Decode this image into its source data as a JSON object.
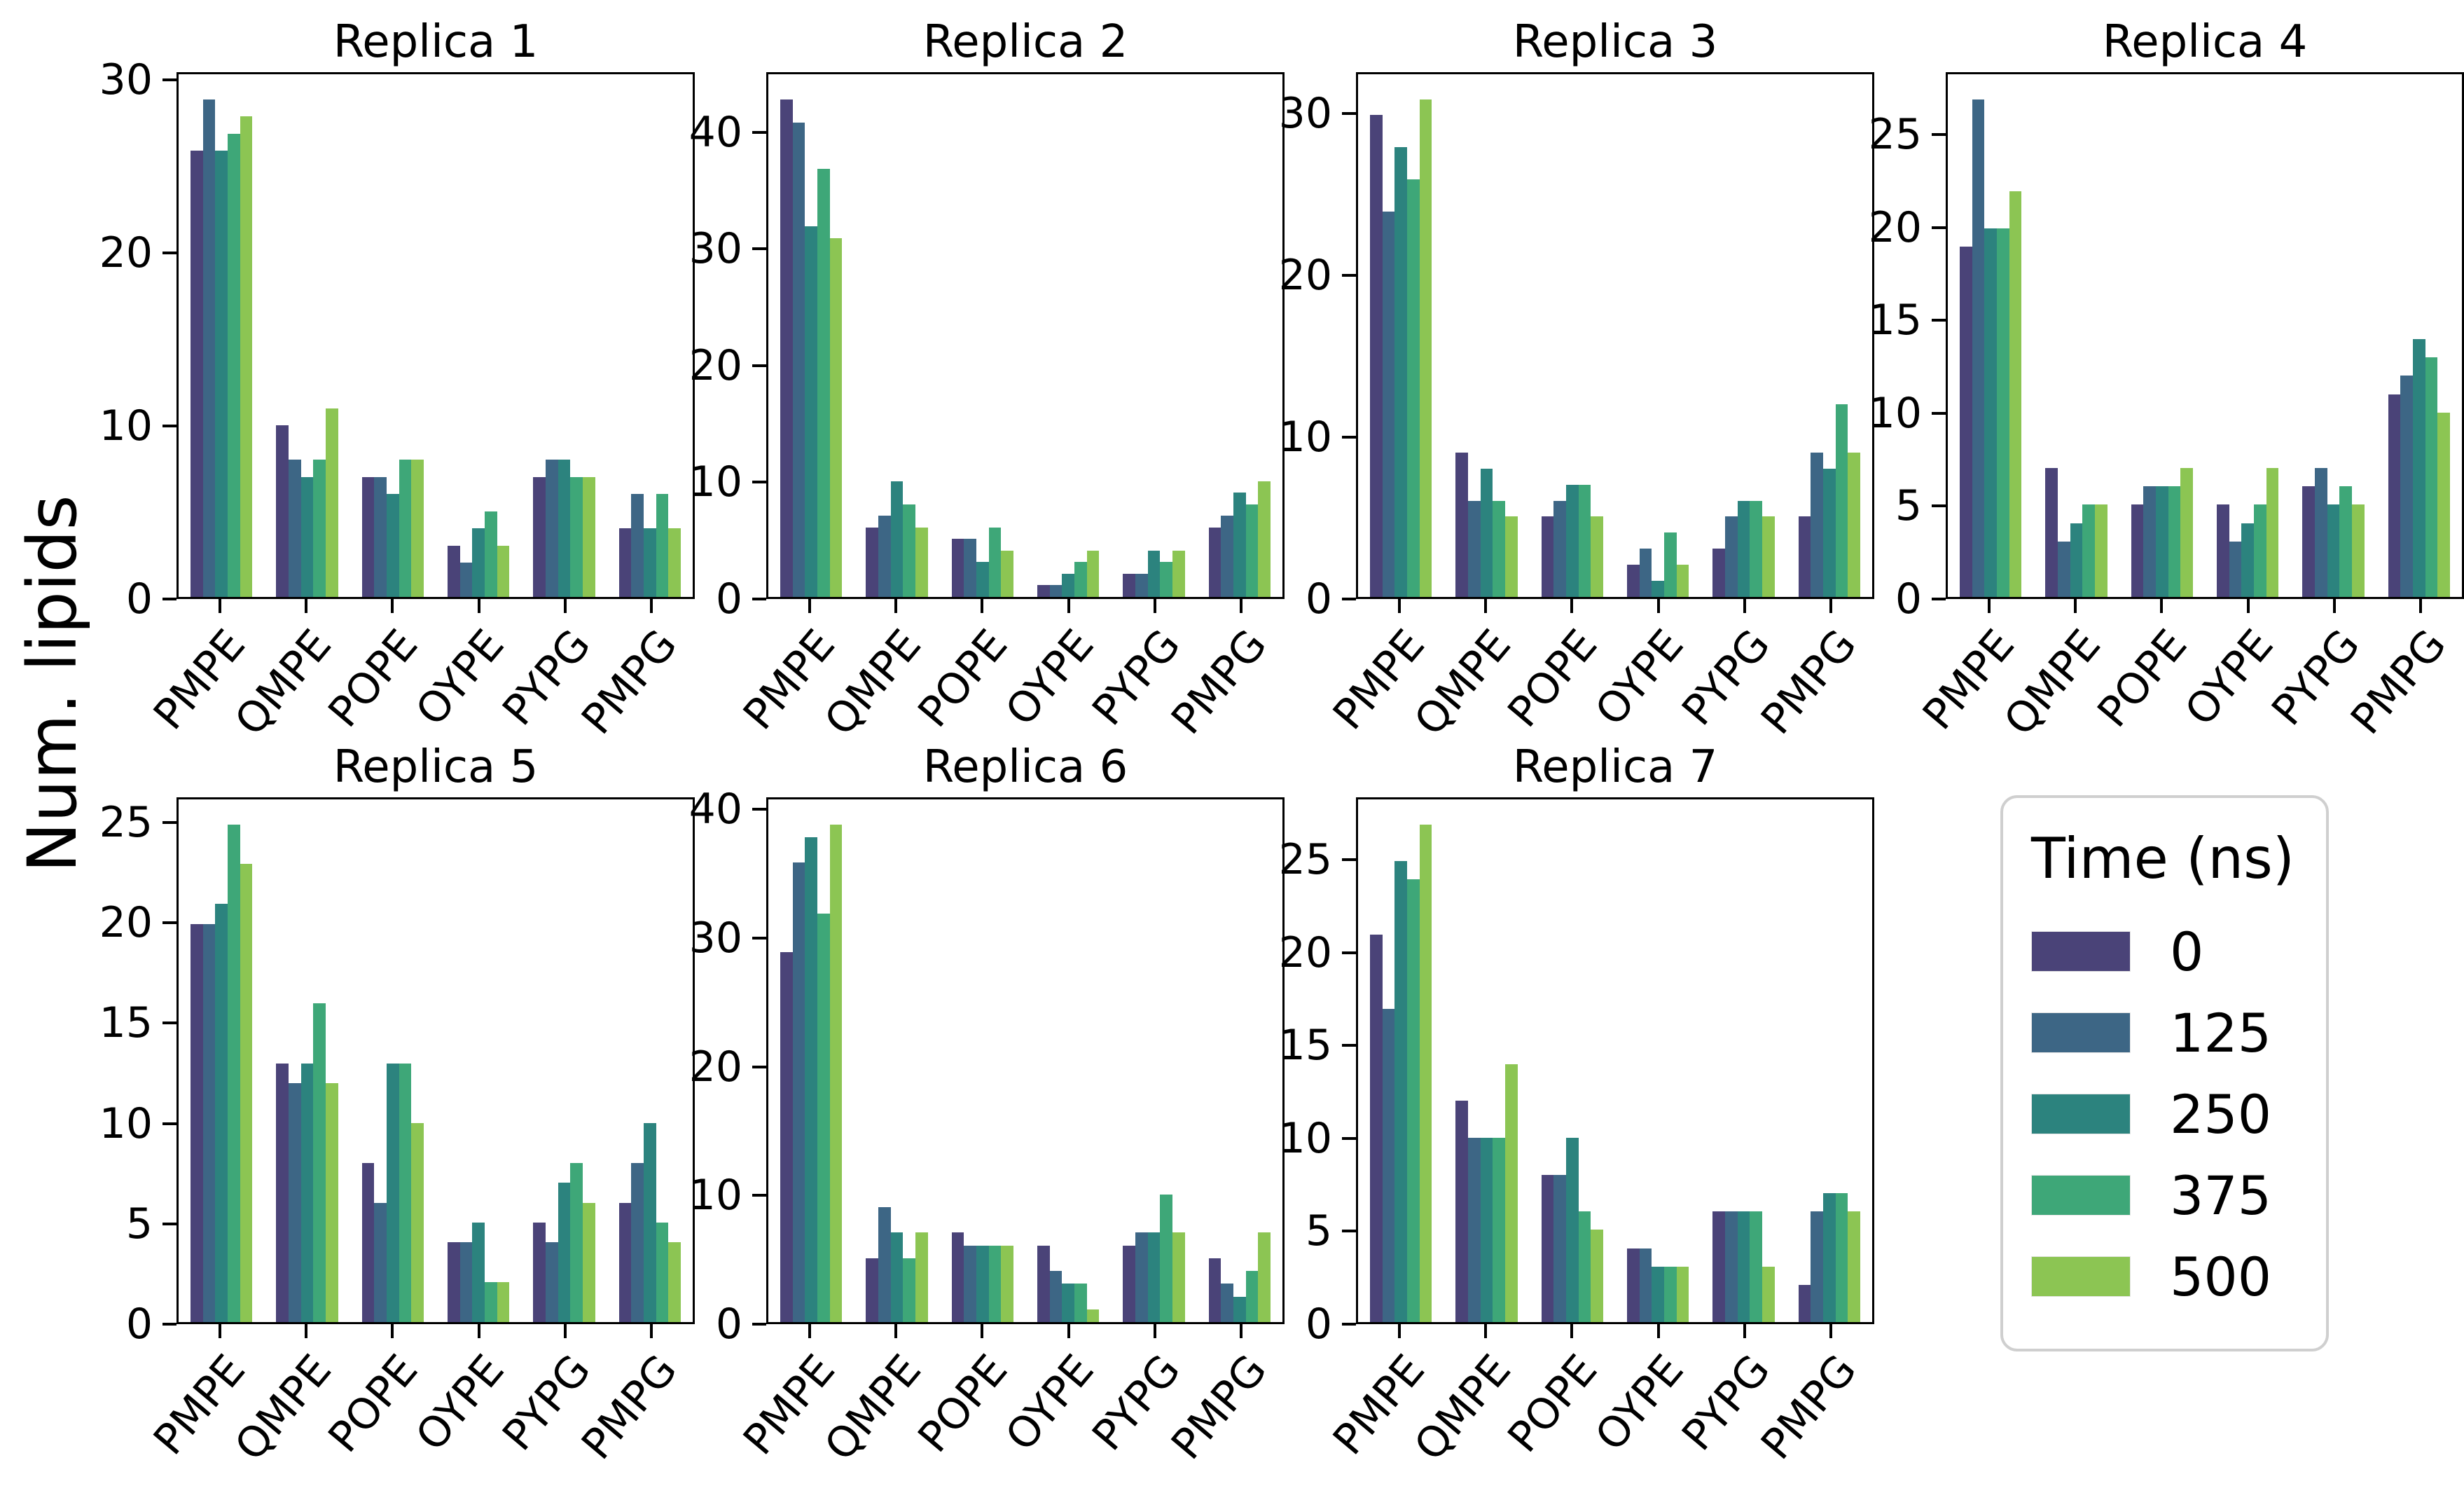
{
  "figure": {
    "background": "#ffffff",
    "text_color": "#000000"
  },
  "chart_data": {
    "type": "bar",
    "title": "",
    "ylabel": "Num. lipids",
    "legend_title": "Time (ns)",
    "legend_position": "bottom-right cell of 4x2 grid",
    "grid": "off",
    "categories": [
      "PMPE",
      "QMPE",
      "POPE",
      "OYPE",
      "PYPG",
      "PMPG"
    ],
    "series": [
      {
        "time": "0",
        "color": "#4a4378"
      },
      {
        "time": "125",
        "color": "#3d6685"
      },
      {
        "time": "250",
        "color": "#2c837e"
      },
      {
        "time": "375",
        "color": "#3ea778"
      },
      {
        "time": "500",
        "color": "#8cc553"
      }
    ],
    "panels": [
      {
        "title": "Replica 1",
        "yticks": [
          0,
          10,
          20,
          30
        ],
        "ylim": [
          0,
          30.45
        ],
        "series_values": [
          [
            26,
            10,
            7,
            3,
            7,
            4
          ],
          [
            29,
            8,
            7,
            2,
            8,
            6
          ],
          [
            26,
            7,
            6,
            4,
            8,
            4
          ],
          [
            27,
            8,
            8,
            5,
            7,
            6
          ],
          [
            28,
            11,
            8,
            3,
            7,
            4
          ]
        ]
      },
      {
        "title": "Replica 2",
        "yticks": [
          0,
          10,
          20,
          30,
          40
        ],
        "ylim": [
          0,
          45.15
        ],
        "series_values": [
          [
            43,
            6,
            5,
            1,
            2,
            6
          ],
          [
            41,
            7,
            5,
            1,
            2,
            7
          ],
          [
            32,
            10,
            3,
            2,
            4,
            9
          ],
          [
            37,
            8,
            6,
            3,
            3,
            8
          ],
          [
            31,
            6,
            4,
            4,
            4,
            10
          ]
        ]
      },
      {
        "title": "Replica 3",
        "yticks": [
          0,
          10,
          20,
          30
        ],
        "ylim": [
          0,
          32.55
        ],
        "series_values": [
          [
            30,
            9,
            5,
            2,
            3,
            5
          ],
          [
            24,
            6,
            6,
            3,
            5,
            9
          ],
          [
            28,
            8,
            7,
            1,
            6,
            8
          ],
          [
            26,
            6,
            7,
            4,
            6,
            12
          ],
          [
            31,
            5,
            5,
            2,
            5,
            9
          ]
        ]
      },
      {
        "title": "Replica 4",
        "yticks": [
          0,
          5,
          10,
          15,
          20,
          25
        ],
        "ylim": [
          0,
          28.35
        ],
        "series_values": [
          [
            19,
            7,
            5,
            5,
            6,
            11
          ],
          [
            27,
            3,
            6,
            3,
            7,
            12
          ],
          [
            20,
            4,
            6,
            4,
            5,
            14
          ],
          [
            20,
            5,
            6,
            5,
            6,
            13
          ],
          [
            22,
            5,
            7,
            7,
            5,
            10
          ]
        ]
      },
      {
        "title": "Replica 5",
        "yticks": [
          0,
          5,
          10,
          15,
          20,
          25
        ],
        "ylim": [
          0,
          26.25
        ],
        "series_values": [
          [
            20,
            13,
            8,
            4,
            5,
            6
          ],
          [
            20,
            12,
            6,
            4,
            4,
            8
          ],
          [
            21,
            13,
            13,
            5,
            7,
            10
          ],
          [
            25,
            16,
            13,
            2,
            8,
            5
          ],
          [
            23,
            12,
            10,
            2,
            6,
            4
          ]
        ]
      },
      {
        "title": "Replica 6",
        "yticks": [
          0,
          10,
          20,
          30,
          40
        ],
        "ylim": [
          0,
          40.95
        ],
        "series_values": [
          [
            29,
            5,
            7,
            6,
            6,
            5
          ],
          [
            36,
            9,
            6,
            4,
            7,
            3
          ],
          [
            38,
            7,
            6,
            3,
            7,
            2
          ],
          [
            32,
            5,
            6,
            3,
            10,
            4
          ],
          [
            39,
            7,
            6,
            1,
            7,
            7
          ]
        ]
      },
      {
        "title": "Replica 7",
        "yticks": [
          0,
          5,
          10,
          15,
          20,
          25
        ],
        "ylim": [
          0,
          28.35
        ],
        "series_values": [
          [
            21,
            12,
            8,
            4,
            6,
            2
          ],
          [
            17,
            10,
            8,
            4,
            6,
            6
          ],
          [
            25,
            10,
            10,
            3,
            6,
            7
          ],
          [
            24,
            10,
            6,
            3,
            6,
            7
          ],
          [
            27,
            14,
            5,
            3,
            3,
            6
          ]
        ]
      }
    ]
  }
}
